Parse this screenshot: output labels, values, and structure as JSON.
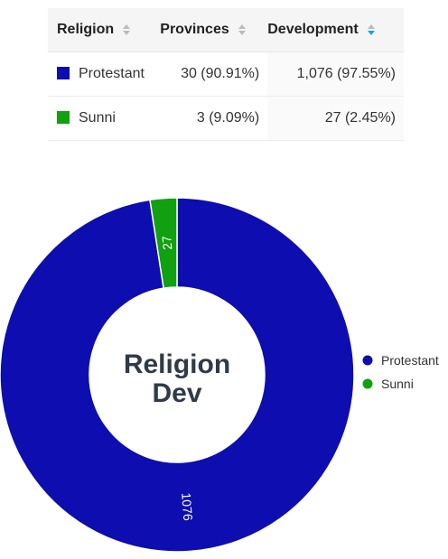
{
  "table": {
    "headers": {
      "religion": "Religion",
      "provinces": "Provinces",
      "development": "Development"
    },
    "sorted_column": "development",
    "sort_direction": "descending",
    "rows": [
      {
        "religion": "Protestant",
        "color": "#0d0db0",
        "provinces": "30 (90.91%)",
        "development": "1,076 (97.55%)"
      },
      {
        "religion": "Sunni",
        "color": "#10a010",
        "provinces": "3 (9.09%)",
        "development": "27 (2.45%)"
      }
    ]
  },
  "chart_data": {
    "type": "pie",
    "variant": "donut",
    "center_label": [
      "Religion",
      "Dev"
    ],
    "categories": [
      "Protestant",
      "Sunni"
    ],
    "values": [
      1076,
      27
    ],
    "colors": [
      "#0d0db0",
      "#10a010"
    ],
    "data_labels": [
      "1076",
      "27"
    ],
    "legend": {
      "position": "right",
      "entries": [
        "Protestant",
        "Sunni"
      ]
    }
  }
}
